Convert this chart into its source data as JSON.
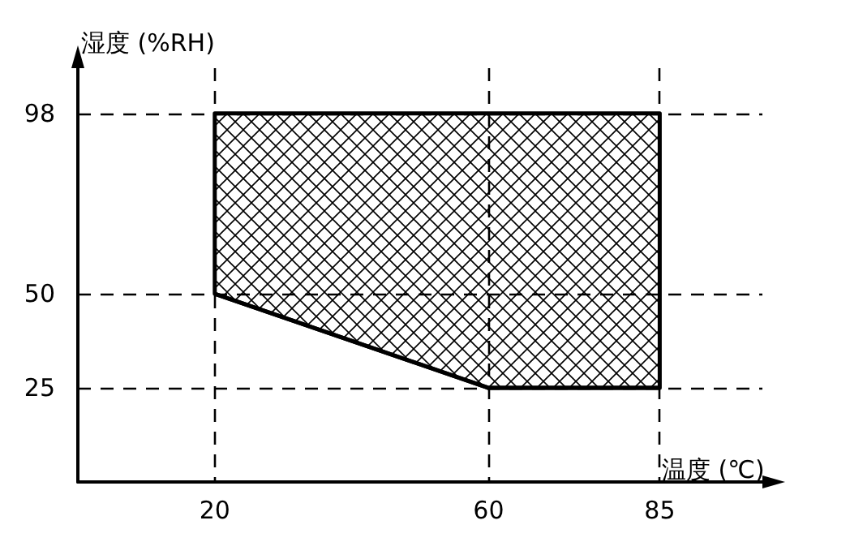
{
  "chart_data": {
    "type": "line",
    "xlabel": "温度 (℃)",
    "ylabel": "湿度 (%RH)",
    "xlim": [
      0,
      100
    ],
    "ylim": [
      0,
      110
    ],
    "xticks": [
      20,
      60,
      85
    ],
    "yticks": [
      25,
      50,
      98
    ],
    "grid": true,
    "series": [
      {
        "color": "#000000",
        "x": [
          20,
          60,
          85
        ],
        "values": [
          50,
          25,
          25
        ],
        "lower": [
          50,
          25,
          25
        ],
        "upper": [
          98,
          98,
          98
        ]
      }
    ]
  }
}
